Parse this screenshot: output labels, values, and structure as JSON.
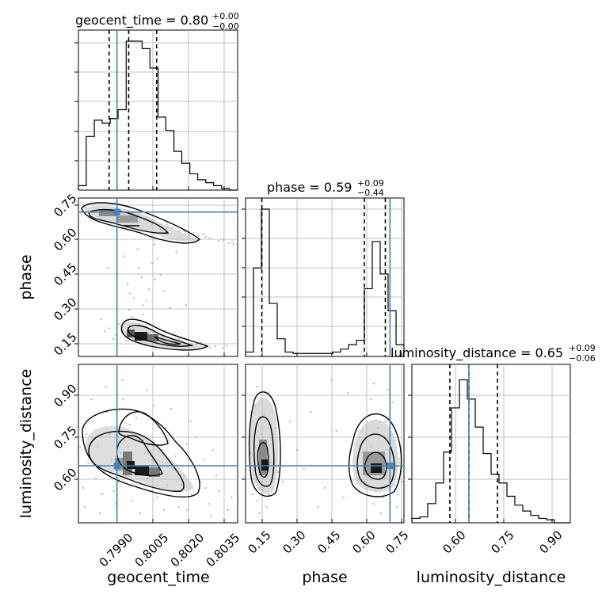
{
  "figure": {
    "type": "corner",
    "parameters": [
      "geocent_time",
      "phase",
      "luminosity_distance"
    ],
    "truth_color": "#4682b4"
  },
  "chart_data": [
    {
      "type": "histogram",
      "parameter": "geocent_time",
      "title": {
        "label": "geocent_time = ",
        "value": "0.80",
        "plus": "+0.00",
        "minus": "−0.00"
      },
      "xlim": [
        0.7982,
        0.8039
      ],
      "bin_edges": [
        0.7982,
        0.79848,
        0.79877,
        0.79905,
        0.79934,
        0.79962,
        0.79991,
        0.80019,
        0.80048,
        0.80076,
        0.80105,
        0.80133,
        0.80162,
        0.8019,
        0.80219,
        0.80247,
        0.80276,
        0.80304,
        0.80333,
        0.80361,
        0.8039
      ],
      "counts": [
        0.03,
        0.36,
        0.47,
        0.45,
        0.48,
        0.54,
        1.0,
        1.0,
        0.95,
        0.82,
        0.49,
        0.4,
        0.26,
        0.18,
        0.11,
        0.07,
        0.05,
        0.03,
        0.01,
        0.0
      ],
      "quantiles": [
        0.7993,
        0.8,
        0.801
      ],
      "truth": 0.79958,
      "xticks": [
        "0.7990",
        "0.8005",
        "0.8020",
        "0.8035"
      ]
    },
    {
      "type": "histogram",
      "parameter": "phase",
      "title": {
        "label": "phase = ",
        "value": "0.59",
        "plus": "+0.09",
        "minus": "−0.44"
      },
      "xlim": [
        0.08,
        0.76
      ],
      "bin_edges": [
        0.08,
        0.114,
        0.148,
        0.182,
        0.216,
        0.25,
        0.284,
        0.318,
        0.352,
        0.386,
        0.42,
        0.454,
        0.488,
        0.522,
        0.556,
        0.59,
        0.624,
        0.658,
        0.692,
        0.726,
        0.76
      ],
      "counts": [
        0.03,
        0.6,
        1.0,
        0.36,
        0.12,
        0.03,
        0.02,
        0.02,
        0.02,
        0.02,
        0.02,
        0.03,
        0.05,
        0.08,
        0.11,
        0.46,
        0.78,
        0.56,
        0.31,
        0.08
      ],
      "quantiles": [
        0.15,
        0.59,
        0.68
      ],
      "truth": 0.7,
      "xticks": [
        "0.15",
        "0.30",
        "0.45",
        "0.60",
        "0.75"
      ]
    },
    {
      "type": "histogram",
      "parameter": "luminosity_distance",
      "title": {
        "label": "luminosity_distance = ",
        "value": "0.65",
        "plus": "+0.09",
        "minus": "−0.06"
      },
      "xlim": [
        0.47,
        0.97
      ],
      "bin_edges": [
        0.47,
        0.495,
        0.52,
        0.545,
        0.57,
        0.595,
        0.62,
        0.645,
        0.67,
        0.695,
        0.72,
        0.745,
        0.77,
        0.795,
        0.82,
        0.845,
        0.87,
        0.895,
        0.92,
        0.945,
        0.97
      ],
      "counts": [
        0.03,
        0.04,
        0.13,
        0.27,
        0.48,
        0.78,
        0.97,
        0.84,
        0.65,
        0.47,
        0.33,
        0.27,
        0.18,
        0.12,
        0.08,
        0.05,
        0.03,
        0.02,
        0.0,
        0.0
      ],
      "quantiles": [
        0.59,
        0.65,
        0.74
      ],
      "truth": 0.65,
      "xticks": [
        "0.60",
        "0.75",
        "0.90"
      ]
    },
    {
      "type": "scatter",
      "x_param": "geocent_time",
      "y_param": "phase",
      "xlim": [
        0.7982,
        0.8039
      ],
      "ylim": [
        0.08,
        0.76
      ],
      "truth": [
        0.79958,
        0.7
      ],
      "yticks": [
        "0.15",
        "0.30",
        "0.45",
        "0.60",
        "0.75"
      ],
      "points": [
        [
          0.79836,
          0.7
        ],
        [
          0.79896,
          0.692
        ],
        [
          0.79967,
          0.678
        ],
        [
          0.80038,
          0.658
        ],
        [
          0.80109,
          0.638
        ],
        [
          0.8018,
          0.619
        ],
        [
          0.8025,
          0.598
        ],
        [
          0.80321,
          0.577
        ],
        [
          0.80375,
          0.561
        ],
        [
          0.79844,
          0.72
        ],
        [
          0.79911,
          0.711
        ],
        [
          0.79983,
          0.692
        ],
        [
          0.80055,
          0.669
        ],
        [
          0.8014,
          0.637
        ],
        [
          0.80201,
          0.618
        ],
        [
          0.8029,
          0.588
        ],
        [
          0.79876,
          0.707
        ],
        [
          0.79938,
          0.7
        ],
        [
          0.80009,
          0.683
        ],
        [
          0.80087,
          0.657
        ],
        [
          0.80158,
          0.632
        ],
        [
          0.80233,
          0.609
        ],
        [
          0.80339,
          0.58
        ],
        [
          0.79864,
          0.672
        ],
        [
          0.79933,
          0.685
        ],
        [
          0.80014,
          0.668
        ],
        [
          0.80083,
          0.649
        ],
        [
          0.80115,
          0.627
        ],
        [
          0.80216,
          0.602
        ],
        [
          0.80277,
          0.593
        ],
        [
          0.80359,
          0.566
        ],
        [
          0.79958,
          0.71
        ],
        [
          0.80014,
          0.695
        ],
        [
          0.80062,
          0.675
        ],
        [
          0.80137,
          0.648
        ],
        [
          0.80198,
          0.622
        ],
        [
          0.80266,
          0.604
        ],
        [
          0.8037,
          0.573
        ],
        [
          0.79914,
          0.188
        ],
        [
          0.79955,
          0.172
        ],
        [
          0.79996,
          0.163
        ],
        [
          0.80044,
          0.155
        ],
        [
          0.80095,
          0.146
        ],
        [
          0.80153,
          0.138
        ],
        [
          0.80216,
          0.13
        ],
        [
          0.80273,
          0.123
        ],
        [
          0.8034,
          0.117
        ],
        [
          0.7993,
          0.201
        ],
        [
          0.79975,
          0.185
        ],
        [
          0.80023,
          0.17
        ],
        [
          0.80076,
          0.16
        ],
        [
          0.80128,
          0.151
        ],
        [
          0.8019,
          0.142
        ],
        [
          0.80243,
          0.134
        ],
        [
          0.8031,
          0.125
        ],
        [
          0.79945,
          0.155
        ],
        [
          0.79992,
          0.148
        ],
        [
          0.80046,
          0.141
        ],
        [
          0.80103,
          0.136
        ],
        [
          0.80166,
          0.131
        ],
        [
          0.80226,
          0.125
        ],
        [
          0.80291,
          0.119
        ],
        [
          0.79966,
          0.219
        ],
        [
          0.80018,
          0.196
        ],
        [
          0.80068,
          0.179
        ],
        [
          0.80121,
          0.165
        ],
        [
          0.80179,
          0.155
        ],
        [
          0.8026,
          0.14
        ],
        [
          0.8035,
          0.126
        ],
        [
          0.80012,
          0.25
        ],
        [
          0.80052,
          0.3
        ],
        [
          0.80004,
          0.35
        ],
        [
          0.80095,
          0.41
        ],
        [
          0.80036,
          0.46
        ],
        [
          0.80072,
          0.37
        ],
        [
          0.80002,
          0.28
        ],
        [
          0.79958,
          0.44
        ],
        [
          0.80103,
          0.5
        ],
        [
          0.80063,
          0.32
        ],
        [
          0.80032,
          0.54
        ],
        [
          0.80114,
          0.43
        ],
        [
          0.79996,
          0.39
        ],
        [
          0.80051,
          0.26
        ],
        [
          0.80083,
          0.48
        ],
        [
          0.80018,
          0.33
        ],
        [
          0.80148,
          0.29
        ],
        [
          0.79985,
          0.51
        ],
        [
          0.80125,
          0.36
        ],
        [
          0.80045,
          0.42
        ],
        [
          0.79902,
          0.24
        ],
        [
          0.80171,
          0.53
        ],
        [
          0.80037,
          0.22
        ],
        [
          0.80092,
          0.56
        ],
        [
          0.79927,
          0.46
        ],
        [
          0.80205,
          0.3
        ]
      ]
    },
    {
      "type": "scatter",
      "x_param": "geocent_time",
      "y_param": "luminosity_distance",
      "xlim": [
        0.7982,
        0.8039
      ],
      "ylim": [
        0.47,
        0.97
      ],
      "truth": [
        0.79958,
        0.65
      ],
      "yticks": [
        "0.60",
        "0.75",
        "0.90"
      ],
      "points": [
        [
          0.79836,
          0.58
        ],
        [
          0.79856,
          0.66
        ],
        [
          0.7989,
          0.71
        ],
        [
          0.79912,
          0.63
        ],
        [
          0.79931,
          0.75
        ],
        [
          0.79946,
          0.57
        ],
        [
          0.79971,
          0.69
        ],
        [
          0.79989,
          0.62
        ],
        [
          0.80004,
          0.78
        ],
        [
          0.80019,
          0.65
        ],
        [
          0.80034,
          0.58
        ],
        [
          0.80052,
          0.73
        ],
        [
          0.80068,
          0.61
        ],
        [
          0.80084,
          0.67
        ],
        [
          0.80102,
          0.55
        ],
        [
          0.80121,
          0.7
        ],
        [
          0.80138,
          0.59
        ],
        [
          0.80157,
          0.64
        ],
        [
          0.80179,
          0.52
        ],
        [
          0.80199,
          0.62
        ],
        [
          0.80225,
          0.56
        ],
        [
          0.80256,
          0.6
        ],
        [
          0.80288,
          0.53
        ],
        [
          0.80323,
          0.57
        ],
        [
          0.80355,
          0.51
        ],
        [
          0.79826,
          0.71
        ],
        [
          0.79874,
          0.79
        ],
        [
          0.79905,
          0.56
        ],
        [
          0.79923,
          0.82
        ],
        [
          0.79962,
          0.6
        ],
        [
          0.79981,
          0.86
        ],
        [
          0.80011,
          0.54
        ],
        [
          0.80027,
          0.8
        ],
        [
          0.80059,
          0.69
        ],
        [
          0.80091,
          0.84
        ],
        [
          0.80113,
          0.63
        ],
        [
          0.80132,
          0.77
        ],
        [
          0.80167,
          0.68
        ],
        [
          0.80208,
          0.72
        ],
        [
          0.80238,
          0.65
        ],
        [
          0.80276,
          0.58
        ],
        [
          0.80314,
          0.62
        ],
        [
          0.80368,
          0.55
        ],
        [
          0.79848,
          0.75
        ],
        [
          0.79882,
          0.61
        ],
        [
          0.79939,
          0.67
        ],
        [
          0.79966,
          0.74
        ],
        [
          0.79998,
          0.71
        ],
        [
          0.80044,
          0.62
        ],
        [
          0.80075,
          0.57
        ],
        [
          0.80144,
          0.73
        ],
        [
          0.80188,
          0.59
        ],
        [
          0.8021,
          0.51
        ],
        [
          0.80268,
          0.67
        ],
        [
          0.79867,
          0.86
        ],
        [
          0.79919,
          0.9
        ],
        [
          0.79977,
          0.92
        ],
        [
          0.80066,
          0.89
        ],
        [
          0.80152,
          0.83
        ],
        [
          0.80221,
          0.79
        ],
        [
          0.80242,
          0.74
        ],
        [
          0.80301,
          0.7
        ],
        [
          0.79843,
          0.52
        ],
        [
          0.79897,
          0.5
        ],
        [
          0.79955,
          0.53
        ],
        [
          0.80041,
          0.5
        ],
        [
          0.80126,
          0.51
        ],
        [
          0.80296,
          0.49
        ]
      ]
    },
    {
      "type": "scatter",
      "x_param": "phase",
      "y_param": "luminosity_distance",
      "xlim": [
        0.08,
        0.76
      ],
      "ylim": [
        0.47,
        0.97
      ],
      "truth": [
        0.7,
        0.65
      ],
      "points": [
        [
          0.1,
          0.62
        ],
        [
          0.12,
          0.71
        ],
        [
          0.14,
          0.58
        ],
        [
          0.16,
          0.67
        ],
        [
          0.11,
          0.79
        ],
        [
          0.13,
          0.54
        ],
        [
          0.15,
          0.75
        ],
        [
          0.17,
          0.6
        ],
        [
          0.19,
          0.66
        ],
        [
          0.12,
          0.84
        ],
        [
          0.14,
          0.5
        ],
        [
          0.16,
          0.81
        ],
        [
          0.18,
          0.56
        ],
        [
          0.2,
          0.72
        ],
        [
          0.22,
          0.63
        ],
        [
          0.1,
          0.69
        ],
        [
          0.13,
          0.9
        ],
        [
          0.15,
          0.64
        ],
        [
          0.17,
          0.52
        ],
        [
          0.21,
          0.77
        ],
        [
          0.24,
          0.6
        ],
        [
          0.14,
          0.68
        ],
        [
          0.18,
          0.88
        ],
        [
          0.11,
          0.56
        ],
        [
          0.16,
          0.73
        ],
        [
          0.6,
          0.63
        ],
        [
          0.62,
          0.71
        ],
        [
          0.64,
          0.57
        ],
        [
          0.66,
          0.68
        ],
        [
          0.68,
          0.61
        ],
        [
          0.7,
          0.75
        ],
        [
          0.72,
          0.59
        ],
        [
          0.74,
          0.66
        ],
        [
          0.61,
          0.81
        ],
        [
          0.63,
          0.53
        ],
        [
          0.65,
          0.77
        ],
        [
          0.67,
          0.55
        ],
        [
          0.69,
          0.7
        ],
        [
          0.71,
          0.64
        ],
        [
          0.73,
          0.52
        ],
        [
          0.62,
          0.86
        ],
        [
          0.64,
          0.62
        ],
        [
          0.66,
          0.5
        ],
        [
          0.68,
          0.79
        ],
        [
          0.7,
          0.58
        ],
        [
          0.72,
          0.73
        ],
        [
          0.74,
          0.67
        ],
        [
          0.59,
          0.69
        ],
        [
          0.63,
          0.91
        ],
        [
          0.67,
          0.63
        ],
        [
          0.71,
          0.85
        ],
        [
          0.58,
          0.6
        ],
        [
          0.75,
          0.6
        ],
        [
          0.57,
          0.74
        ],
        [
          0.69,
          0.89
        ],
        [
          0.3,
          0.7
        ],
        [
          0.36,
          0.82
        ],
        [
          0.42,
          0.58
        ],
        [
          0.47,
          0.76
        ],
        [
          0.52,
          0.88
        ],
        [
          0.33,
          0.64
        ],
        [
          0.39,
          0.52
        ],
        [
          0.45,
          0.92
        ],
        [
          0.27,
          0.79
        ],
        [
          0.5,
          0.55
        ]
      ]
    }
  ]
}
